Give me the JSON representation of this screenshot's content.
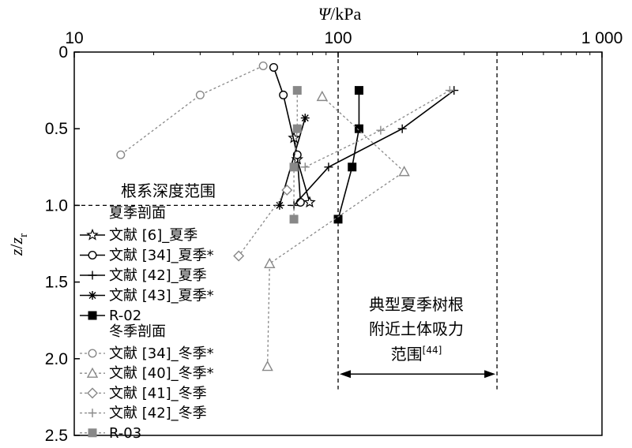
{
  "chart_data": {
    "type": "scatter",
    "x_axis": {
      "title_symbol": "Ψ",
      "title_unit": "/kPa",
      "scale": "log",
      "xlim": [
        10,
        1000
      ],
      "tick_labels": [
        "10",
        "100",
        "1 000"
      ],
      "ticks": [
        10,
        100,
        1000
      ],
      "position": "top"
    },
    "y_axis": {
      "title_main": "z",
      "title_sep": "/",
      "title_z": "z",
      "title_sub": "r",
      "ylim": [
        0,
        2.5
      ],
      "inverted": true,
      "tick_labels": [
        "0",
        "0.5",
        "1.0",
        "1.5",
        "2.0",
        "2.5"
      ],
      "ticks": [
        0,
        0.5,
        1.0,
        1.5,
        2.0,
        2.5
      ]
    },
    "grid": false,
    "legend_position": "left",
    "legend": {
      "summer_header": "夏季剖面",
      "winter_header": "冬季剖面"
    },
    "annotations": {
      "root_depth": "根系深度范围",
      "root_depth_level": 1.0,
      "summer_range_line1": "典型夏季树根",
      "summer_range_line2": "附近土体吸力",
      "summer_range_line3": "范围",
      "summer_range_ref": "[44]",
      "summer_range_kpa": [
        100,
        400
      ],
      "summer_range_arrow_depth": 2.1
    },
    "series": [
      {
        "name": "文献 [6]_夏季",
        "group": "summer",
        "marker": "star",
        "color": "#000000",
        "dashed": false,
        "points": [
          [
            68,
            0.56
          ],
          [
            70,
            0.7
          ],
          [
            78,
            0.98
          ]
        ]
      },
      {
        "name": "文献 [34]_夏季*",
        "group": "summer",
        "marker": "circle",
        "color": "#000000",
        "dashed": false,
        "points": [
          [
            57,
            0.1
          ],
          [
            62,
            0.28
          ],
          [
            70,
            0.67
          ],
          [
            72,
            0.98
          ]
        ]
      },
      {
        "name": "文献 [42]_夏季",
        "group": "summer",
        "marker": "plus",
        "color": "#000000",
        "dashed": false,
        "points": [
          [
            275,
            0.25
          ],
          [
            175,
            0.5
          ],
          [
            92,
            0.75
          ],
          [
            68,
            1.0
          ]
        ]
      },
      {
        "name": "文献 [43]_夏季*",
        "group": "summer",
        "marker": "asterisk",
        "color": "#000000",
        "dashed": false,
        "points": [
          [
            75,
            0.43
          ],
          [
            60,
            1.0
          ]
        ]
      },
      {
        "name": "R-02",
        "group": "summer",
        "marker": "square",
        "color": "#000000",
        "dashed": false,
        "points": [
          [
            120,
            0.25
          ],
          [
            120,
            0.5
          ],
          [
            113,
            0.75
          ],
          [
            100,
            1.09
          ]
        ]
      },
      {
        "name": "文献 [34]_冬季*",
        "group": "winter",
        "marker": "circle",
        "color": "#888888",
        "dashed": true,
        "points": [
          [
            52,
            0.09
          ],
          [
            30,
            0.28
          ],
          [
            15,
            0.67
          ]
        ]
      },
      {
        "name": "文献 [40]_冬季*",
        "group": "winter",
        "marker": "triangle",
        "color": "#888888",
        "dashed": true,
        "points": [
          [
            87,
            0.29
          ],
          [
            178,
            0.78
          ],
          [
            55,
            1.38
          ],
          [
            54,
            2.05
          ]
        ]
      },
      {
        "name": "文献 [41]_冬季",
        "group": "winter",
        "marker": "diamond",
        "color": "#888888",
        "dashed": true,
        "points": [
          [
            64,
            0.9
          ],
          [
            42,
            1.33
          ]
        ]
      },
      {
        "name": "文献 [42]_冬季",
        "group": "winter",
        "marker": "plus",
        "color": "#888888",
        "dashed": true,
        "points": [
          [
            265,
            0.25
          ],
          [
            145,
            0.51
          ],
          [
            75,
            0.75
          ]
        ]
      },
      {
        "name": "R-03",
        "group": "winter",
        "marker": "square",
        "color": "#888888",
        "dashed": true,
        "points": [
          [
            70,
            0.25
          ],
          [
            70,
            0.5
          ],
          [
            68,
            0.75
          ],
          [
            68,
            1.09
          ]
        ]
      }
    ]
  }
}
